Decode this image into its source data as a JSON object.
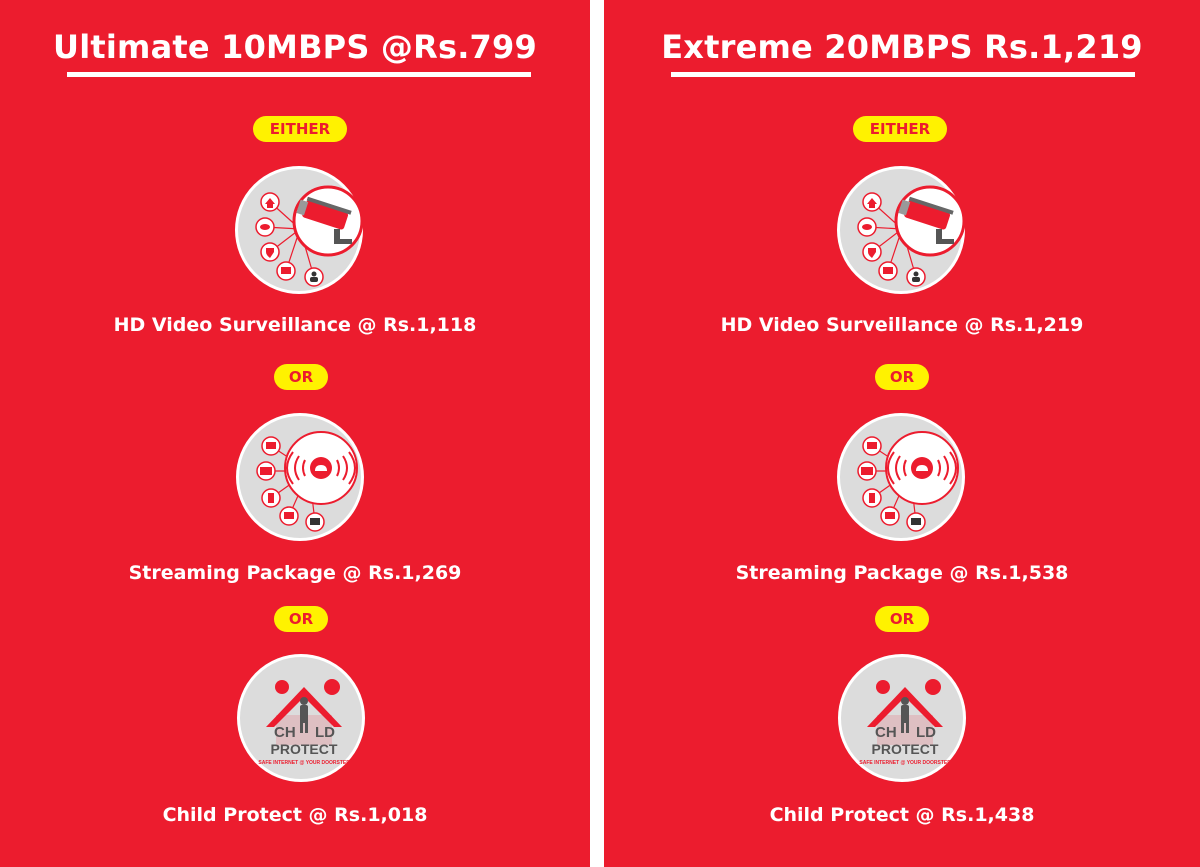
{
  "colors": {
    "panel_bg": "#ec1c2e",
    "pill_bg": "#fff200",
    "pill_text": "#ec1c2e",
    "icon_bg": "#dcdcdc"
  },
  "panels": [
    {
      "title": "Ultimate 10MBPS @Rs.799",
      "either_label": "EITHER",
      "or_label_1": "OR",
      "or_label_2": "OR",
      "offers": [
        {
          "icon": "cctv-camera-icon",
          "label": "HD Video Surveillance @ Rs.1,118"
        },
        {
          "icon": "streaming-cloud-icon",
          "label": "Streaming Package @ Rs.1,269"
        },
        {
          "icon": "child-protect-logo",
          "label": "Child Protect @ Rs.1,018",
          "logo_text_1": "CH",
          "logo_text_2": "LD",
          "logo_text_3": "PROTECT",
          "logo_tagline": "SAFE INTERNET @ YOUR DOORSTEP"
        }
      ]
    },
    {
      "title": "Extreme 20MBPS Rs.1,219",
      "either_label": "EITHER",
      "or_label_1": "OR",
      "or_label_2": "OR",
      "offers": [
        {
          "icon": "cctv-camera-icon",
          "label": "HD Video Surveillance @ Rs.1,219"
        },
        {
          "icon": "streaming-cloud-icon",
          "label": "Streaming Package @ Rs.1,538"
        },
        {
          "icon": "child-protect-logo",
          "label": "Child Protect @ Rs.1,438",
          "logo_text_1": "CH",
          "logo_text_2": "LD",
          "logo_text_3": "PROTECT",
          "logo_tagline": "SAFE INTERNET @ YOUR DOORSTEP"
        }
      ]
    }
  ]
}
